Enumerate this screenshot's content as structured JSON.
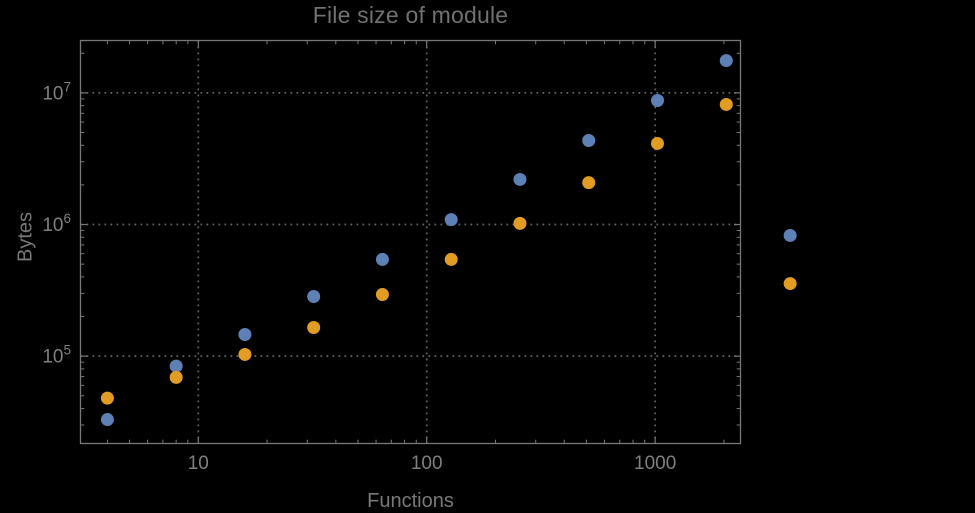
{
  "window": {
    "background": "#000000"
  },
  "colors": {
    "background": "#000000",
    "title": "#717171",
    "axis_label": "#787878",
    "tick_label": "#7F7F7F",
    "frame": "#777777",
    "tick": "#777777",
    "grid": "#646464",
    "series_blue": "#5E81B5",
    "series_orange": "#E19C24"
  },
  "chart_data": {
    "type": "scatter",
    "title": "File size of module",
    "xlabel": "Functions",
    "ylabel": "Bytes",
    "x_scale": "log",
    "y_scale": "log",
    "grid": {
      "style": "dotted",
      "x_values": [
        10,
        100,
        1000
      ],
      "y_values": [
        100000,
        1000000,
        10000000
      ]
    },
    "legend": null,
    "marker": {
      "shape": "circle",
      "radius": 6.5
    },
    "x_axis": {
      "range": [
        3.05,
        2364
      ],
      "major_ticks": [
        {
          "value": 10,
          "label": "10"
        },
        {
          "value": 100,
          "label": "100"
        },
        {
          "value": 1000,
          "label": "1000"
        }
      ],
      "minor_ticks": [
        4,
        5,
        6,
        7,
        8,
        9,
        20,
        30,
        40,
        50,
        60,
        70,
        80,
        90,
        200,
        300,
        400,
        500,
        600,
        700,
        800,
        900,
        2000
      ]
    },
    "y_axis": {
      "range": [
        21700,
        25000000
      ],
      "major_ticks": [
        {
          "value": 100000,
          "label_base": "10",
          "label_exp": "5"
        },
        {
          "value": 1000000,
          "label_base": "10",
          "label_exp": "6"
        },
        {
          "value": 10000000,
          "label_base": "10",
          "label_exp": "7"
        }
      ],
      "minor_ticks": [
        30000,
        40000,
        50000,
        60000,
        70000,
        80000,
        90000,
        200000,
        300000,
        400000,
        500000,
        600000,
        700000,
        800000,
        900000,
        2000000,
        3000000,
        4000000,
        5000000,
        6000000,
        7000000,
        8000000,
        9000000,
        20000000
      ]
    },
    "x": [
      4,
      8,
      16,
      32,
      64,
      128,
      256,
      512,
      1024,
      2048,
      3900
    ],
    "series": [
      {
        "name": "blue",
        "color": "#5E81B5",
        "values": [
          33000,
          84000,
          146000,
          284000,
          543000,
          1090000,
          2200000,
          4350000,
          8750000,
          17600000,
          826000
        ]
      },
      {
        "name": "orange",
        "color": "#E19C24",
        "values": [
          48000,
          69000,
          103000,
          165000,
          294000,
          543000,
          1020000,
          2080000,
          4130000,
          8170000,
          356000
        ]
      }
    ]
  }
}
